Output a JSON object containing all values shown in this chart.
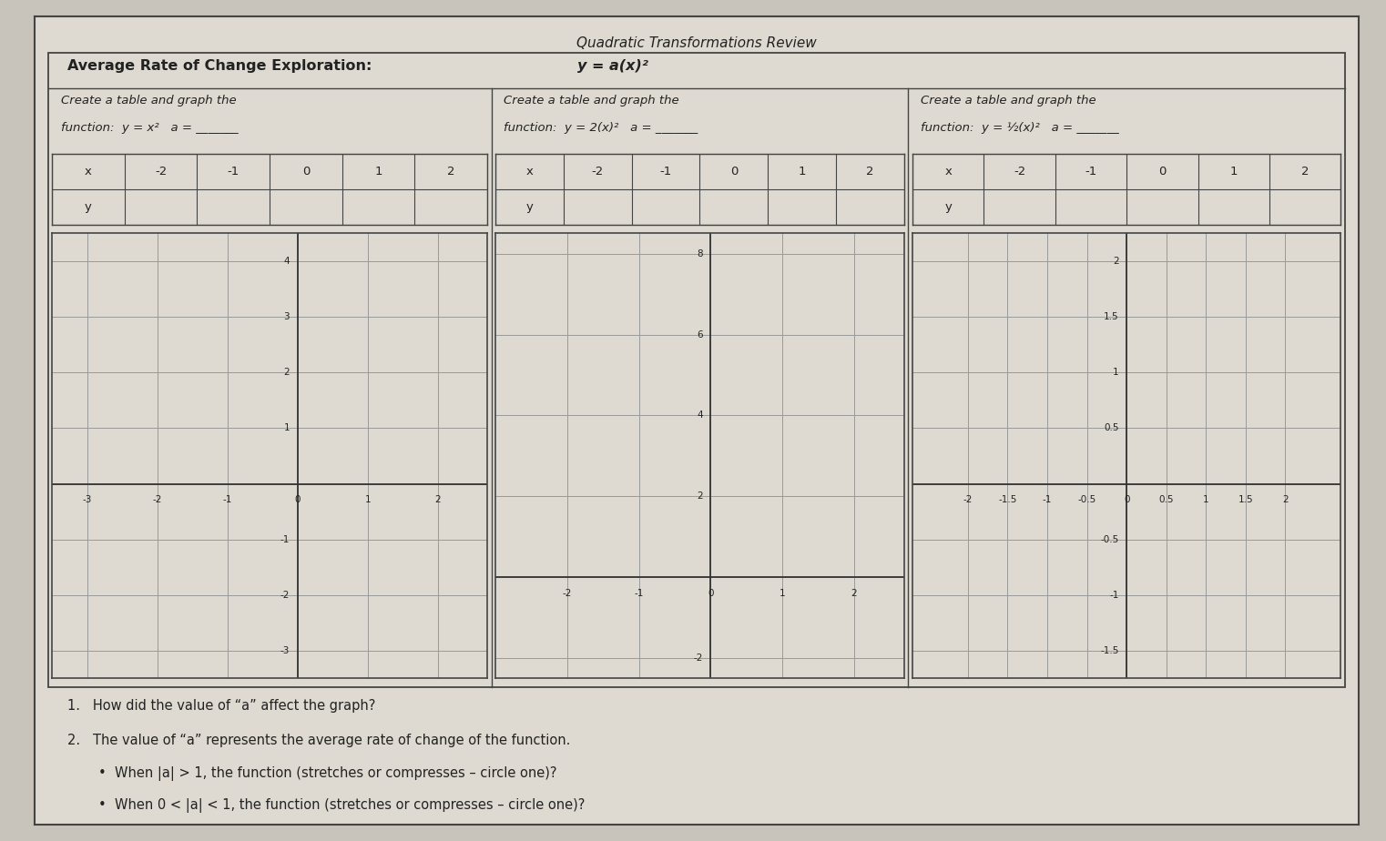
{
  "title": "Quadratic Transformations Review",
  "subtitle_bold": "Average Rate of Change Exploration: ",
  "subtitle_math": " y = a(x)²",
  "bg_color": "#c8c4bc",
  "paper_color": "#dedad2",
  "grid_color": "#999999",
  "border_color": "#444444",
  "axis_color": "#333333",
  "text_color": "#222222",
  "sections": [
    {
      "label_line1": "Create a table and graph the",
      "label_line2": "function:  y = x²   a = _______",
      "xlim": [
        -3.5,
        2.7
      ],
      "ylim": [
        -3.5,
        4.5
      ],
      "xticks": [
        -3,
        -2,
        -1,
        0,
        1,
        2
      ],
      "yticks": [
        -3,
        -2,
        -1,
        0,
        1,
        2,
        3,
        4
      ],
      "xlabel_show": [
        -3,
        -2,
        -1,
        0,
        1,
        2
      ],
      "ylabel_show": [
        -3,
        -2,
        -1,
        1,
        2,
        3,
        4
      ],
      "table_x": [
        "x",
        "-2",
        "-1",
        "0",
        "1",
        "2"
      ],
      "col_widths": [
        1,
        1,
        1,
        1,
        1,
        1
      ]
    },
    {
      "label_line1": "Create a table and graph the",
      "label_line2": "function:  y = 2(x)²   a = _______",
      "xlim": [
        -3.0,
        2.7
      ],
      "ylim": [
        -2.5,
        8.5
      ],
      "xticks": [
        -2,
        -1,
        0,
        1,
        2
      ],
      "yticks": [
        -2,
        0,
        2,
        4,
        6,
        8
      ],
      "xlabel_show": [
        -2,
        -1,
        0,
        1,
        2
      ],
      "ylabel_show": [
        -2,
        2,
        4,
        6,
        8
      ],
      "table_x": [
        "x",
        "-2",
        "-1",
        "0",
        "1",
        "2"
      ],
      "col_widths": [
        1,
        1,
        1,
        1,
        1,
        1
      ]
    },
    {
      "label_line1": "Create a table and graph the",
      "label_line2": "function:  y = ½(x)²   a = _______",
      "xlim": [
        -2.7,
        2.7
      ],
      "ylim": [
        -1.75,
        2.25
      ],
      "xticks": [
        -2,
        -1.5,
        -1,
        -0.5,
        0,
        0.5,
        1,
        1.5,
        2
      ],
      "yticks": [
        -1.5,
        -1,
        -0.5,
        0,
        0.5,
        1,
        1.5,
        2
      ],
      "xlabel_show": [
        -2,
        -1.5,
        -1,
        -0.5,
        0,
        0.5,
        1,
        1.5,
        2
      ],
      "ylabel_show": [
        -1.5,
        -1,
        -0.5,
        0.5,
        1,
        1.5,
        2
      ],
      "table_x": [
        "x",
        "-2",
        "-1",
        "0",
        "1",
        "2"
      ],
      "col_widths": [
        1,
        1,
        1,
        1,
        1,
        1
      ]
    }
  ],
  "questions": [
    "1.   How did the value of “a” affect the graph?",
    "2.   The value of “a” represents the average rate of change of the function.",
    "When |a| > 1, the function (stretches or compresses – circle one)?",
    "When 0 < |a| < 1, the function (stretches or compresses – circle one)?"
  ]
}
